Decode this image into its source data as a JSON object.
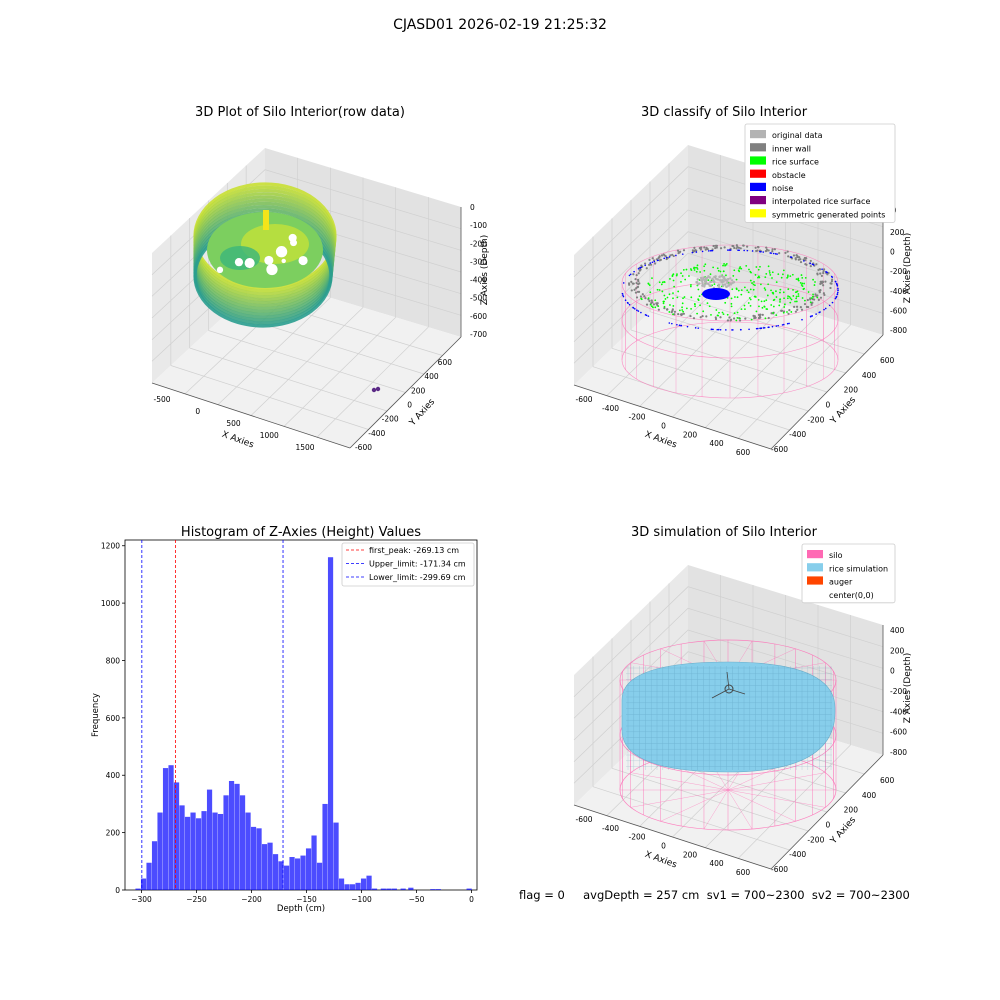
{
  "figure": {
    "suptitle": "CJASD01 2026-02-19 21:25:32",
    "status_text": "flag = 0     avgDepth = 257 cm  sv1 = 700~2300  sv2 = 700~2300"
  },
  "colors": {
    "viridis_low": "#2a9d8f",
    "viridis_high": "#c9e033",
    "pane_left": "#e9e9e9",
    "pane_right": "#e2e2e2",
    "pane_floor": "#f1f1f1",
    "grid": "#d0d0d0",
    "silo_wire": "#ff69b4",
    "rice_sim": "#87ceeb",
    "hist_bar": "#0000ff"
  },
  "chart_data": [
    {
      "type": "scatter",
      "subtype": "3d",
      "title": "3D Plot of Silo Interior(row data)",
      "xlabel": "X Axies",
      "ylabel": "Y Axies",
      "zlabel": "Z Axies (Depth)",
      "x_ticks": [
        "-500",
        "0",
        "500",
        "1000",
        "1500"
      ],
      "y_ticks": [
        "-600",
        "-400",
        "-200",
        "0",
        "200",
        "400",
        "600"
      ],
      "z_ticks": [
        "0",
        "-100",
        "-200",
        "-300",
        "-400",
        "-500",
        "-600",
        "-700"
      ],
      "colormap": "viridis",
      "outlier_points": [
        {
          "x": 1750,
          "y": -250,
          "z": -760
        },
        {
          "x": 1760,
          "y": -240,
          "z": -755
        }
      ]
    },
    {
      "type": "scatter",
      "subtype": "3d",
      "title": "3D classify of Silo Interior",
      "xlabel": "X Axies",
      "ylabel": "Y Axies",
      "zlabel": "Z Axies (Depth)",
      "x_ticks": [
        "-600",
        "-400",
        "-200",
        "0",
        "200",
        "400",
        "600"
      ],
      "y_ticks": [
        "-600",
        "-400",
        "-200",
        "0",
        "200",
        "400",
        "600"
      ],
      "z_ticks": [
        "200",
        "0",
        "-200",
        "-400",
        "-600",
        "-800"
      ],
      "z_partial_tick": "00",
      "legend": [
        {
          "label": "original data",
          "color": "#b3b3b3"
        },
        {
          "label": "inner wall",
          "color": "#808080"
        },
        {
          "label": "rice surface",
          "color": "#00ff00"
        },
        {
          "label": "obstacle",
          "color": "#ff0000"
        },
        {
          "label": "noise",
          "color": "#0000ff"
        },
        {
          "label": "interpolated rice surface",
          "color": "#800080"
        },
        {
          "label": "symmetric generated points",
          "color": "#ffff00"
        }
      ],
      "legend_position": "top-right"
    },
    {
      "type": "bar",
      "subtype": "histogram",
      "title": "Histogram of Z-Axies (Height) Values",
      "xlabel": "Depth (cm)",
      "ylabel": "Frequency",
      "xlim": [
        -315,
        5
      ],
      "ylim": [
        0,
        1220
      ],
      "x_ticks": [
        -300,
        -250,
        -200,
        -150,
        -100,
        -50,
        0
      ],
      "y_ticks": [
        0,
        200,
        400,
        600,
        800,
        1000,
        1200
      ],
      "bins": [
        [
          -303,
          5
        ],
        [
          -298,
          40
        ],
        [
          -293,
          95
        ],
        [
          -288,
          170
        ],
        [
          -283,
          270
        ],
        [
          -278,
          425
        ],
        [
          -273,
          435
        ],
        [
          -268,
          375
        ],
        [
          -263,
          295
        ],
        [
          -258,
          255
        ],
        [
          -253,
          270
        ],
        [
          -248,
          250
        ],
        [
          -243,
          275
        ],
        [
          -238,
          350
        ],
        [
          -233,
          270
        ],
        [
          -228,
          265
        ],
        [
          -223,
          330
        ],
        [
          -218,
          380
        ],
        [
          -213,
          370
        ],
        [
          -208,
          330
        ],
        [
          -203,
          270
        ],
        [
          -198,
          220
        ],
        [
          -193,
          215
        ],
        [
          -188,
          160
        ],
        [
          -183,
          165
        ],
        [
          -178,
          125
        ],
        [
          -173,
          100
        ],
        [
          -168,
          85
        ],
        [
          -163,
          115
        ],
        [
          -158,
          110
        ],
        [
          -153,
          120
        ],
        [
          -148,
          145
        ],
        [
          -143,
          190
        ],
        [
          -138,
          95
        ],
        [
          -133,
          300
        ],
        [
          -128,
          1160
        ],
        [
          -123,
          235
        ],
        [
          -118,
          40
        ],
        [
          -113,
          20
        ],
        [
          -108,
          20
        ],
        [
          -103,
          25
        ],
        [
          -98,
          40
        ],
        [
          -93,
          50
        ],
        [
          -88,
          5
        ],
        [
          -80,
          5
        ],
        [
          -75,
          5
        ],
        [
          -70,
          5
        ],
        [
          -62,
          5
        ],
        [
          -55,
          8
        ],
        [
          -35,
          3
        ],
        [
          -30,
          3
        ],
        [
          -2,
          5
        ]
      ],
      "bin_width": 5,
      "reference_lines": [
        {
          "label": "first_peak: -269.13 cm",
          "value": -269.13,
          "color": "#ff0000"
        },
        {
          "label": "Upper_limit: -171.34 cm",
          "value": -171.34,
          "color": "#0000ff"
        },
        {
          "label": "Lower_limit: -299.69 cm",
          "value": -299.69,
          "color": "#0000ff"
        }
      ],
      "legend_position": "top-right"
    },
    {
      "type": "scatter",
      "subtype": "3d",
      "title": "3D simulation of Silo Interior",
      "xlabel": "X Axies",
      "ylabel": "Y Axies",
      "zlabel": "Z Axies (Depth)",
      "x_ticks": [
        "-600",
        "-400",
        "-200",
        "0",
        "200",
        "400",
        "600"
      ],
      "y_ticks": [
        "-600",
        "-400",
        "-200",
        "0",
        "200",
        "400",
        "600"
      ],
      "z_ticks": [
        "400",
        "200",
        "0",
        "-200",
        "-400",
        "-600",
        "-800"
      ],
      "legend": [
        {
          "label": "silo",
          "color": "#ff69b4"
        },
        {
          "label": "rice simulation",
          "color": "#87ceeb"
        },
        {
          "label": "auger",
          "color": "#ff4500"
        },
        {
          "label": "center(0,0)",
          "color": "transparent"
        }
      ],
      "legend_position": "top-right"
    }
  ]
}
